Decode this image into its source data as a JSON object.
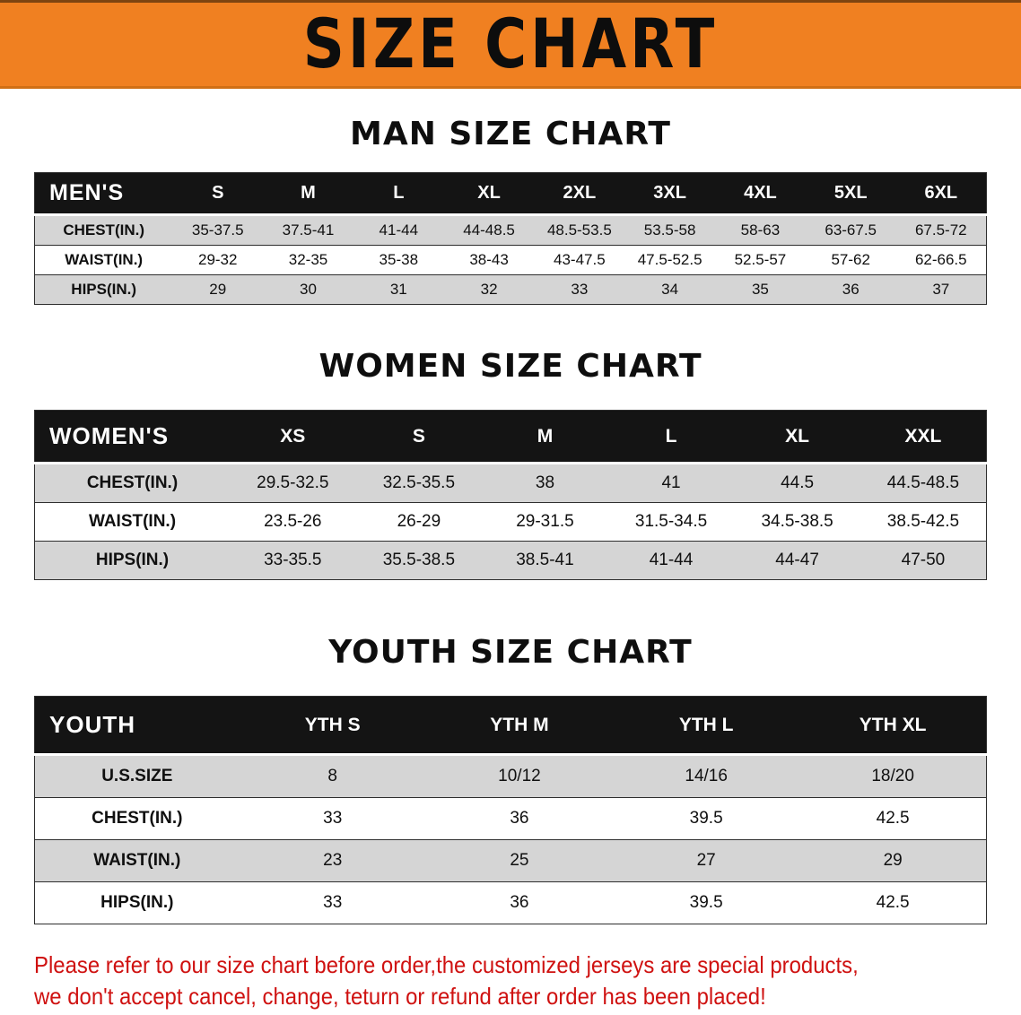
{
  "banner": {
    "title": "SIZE CHART"
  },
  "colors": {
    "banner_bg": "#f08021",
    "header_bg": "#141414",
    "stripe": "#d5d5d5",
    "disclaimer_red": "#cf1110"
  },
  "sections": [
    {
      "id": "mens",
      "heading": "MAN SIZE CHART",
      "table": {
        "header": [
          "MEN'S",
          "S",
          "M",
          "L",
          "XL",
          "2XL",
          "3XL",
          "4XL",
          "5XL",
          "6XL"
        ],
        "rows": [
          [
            "CHEST(IN.)",
            "35-37.5",
            "37.5-41",
            "41-44",
            "44-48.5",
            "48.5-53.5",
            "53.5-58",
            "58-63",
            "63-67.5",
            "67.5-72"
          ],
          [
            "WAIST(IN.)",
            "29-32",
            "32-35",
            "35-38",
            "38-43",
            "43-47.5",
            "47.5-52.5",
            "52.5-57",
            "57-62",
            "62-66.5"
          ],
          [
            "HIPS(IN.)",
            "29",
            "30",
            "31",
            "32",
            "33",
            "34",
            "35",
            "36",
            "37"
          ]
        ]
      }
    },
    {
      "id": "womens",
      "heading": "WOMEN SIZE CHART",
      "table": {
        "header": [
          "WOMEN'S",
          "XS",
          "S",
          "M",
          "L",
          "XL",
          "XXL"
        ],
        "rows": [
          [
            "CHEST(IN.)",
            "29.5-32.5",
            "32.5-35.5",
            "38",
            "41",
            "44.5",
            "44.5-48.5"
          ],
          [
            "WAIST(IN.)",
            "23.5-26",
            "26-29",
            "29-31.5",
            "31.5-34.5",
            "34.5-38.5",
            "38.5-42.5"
          ],
          [
            "HIPS(IN.)",
            "33-35.5",
            "35.5-38.5",
            "38.5-41",
            "41-44",
            "44-47",
            "47-50"
          ]
        ]
      }
    },
    {
      "id": "youth",
      "heading": "YOUTH SIZE CHART",
      "table": {
        "header": [
          "YOUTH",
          "YTH S",
          "YTH M",
          "YTH L",
          "YTH XL"
        ],
        "rows": [
          [
            "U.S.SIZE",
            "8",
            "10/12",
            "14/16",
            "18/20"
          ],
          [
            "CHEST(IN.)",
            "33",
            "36",
            "39.5",
            "42.5"
          ],
          [
            "WAIST(IN.)",
            "23",
            "25",
            "27",
            "29"
          ],
          [
            "HIPS(IN.)",
            "33",
            "36",
            "39.5",
            "42.5"
          ]
        ]
      }
    }
  ],
  "disclaimer": {
    "line1": "Please refer to our size chart before order,the customized jerseys are special products,",
    "line2": "we don't accept cancel, change, teturn or refund after order has been placed!"
  }
}
